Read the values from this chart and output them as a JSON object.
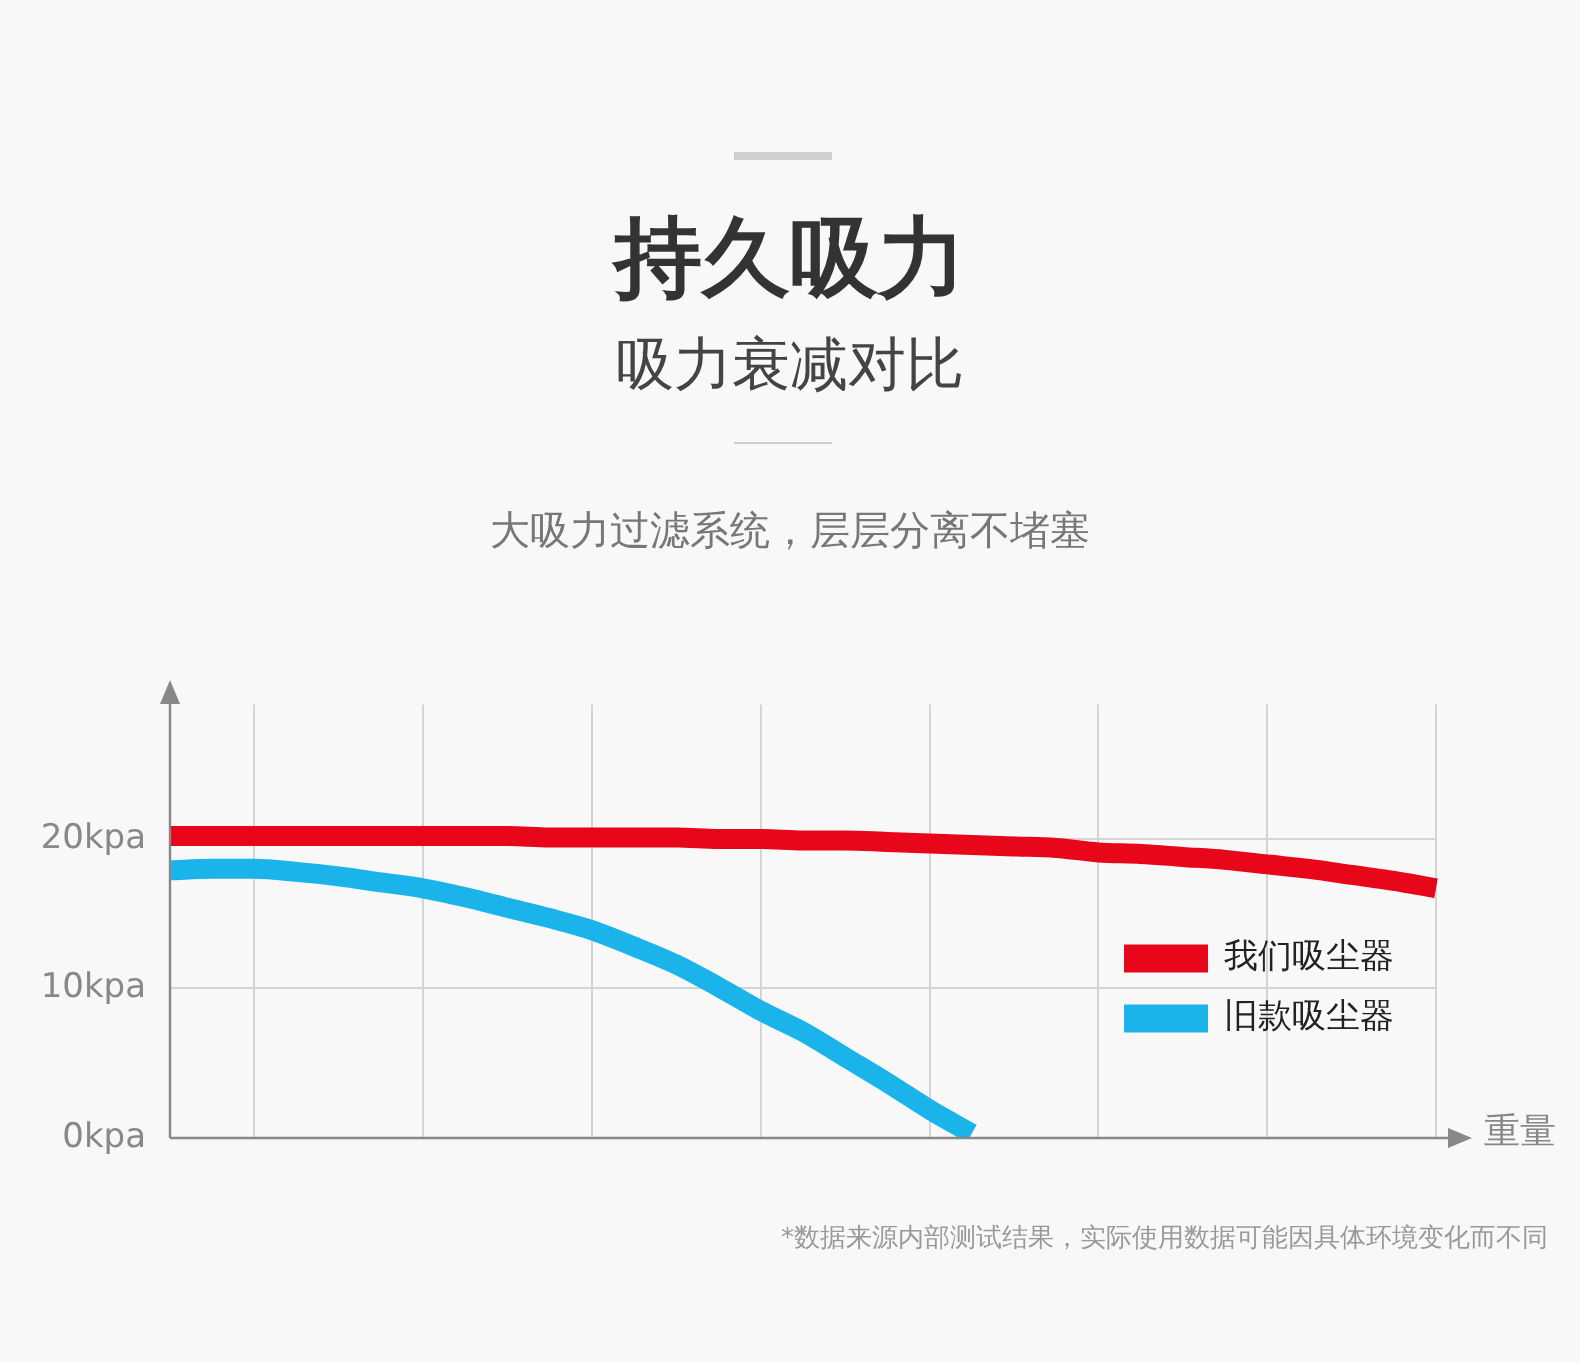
{
  "chart_data": {
    "type": "line",
    "title": "持久吸力",
    "subtitle": "吸力衰减对比",
    "annotations": [
      "大吸力过滤系统，层层分离不堵塞",
      "*数据来源内部测试结果，实际使用数据可能因具体环境变化而不同"
    ],
    "xlabel": "重量",
    "categories": [
      null,
      null,
      null,
      null,
      null,
      null,
      null,
      null,
      null,
      null,
      null,
      null,
      null,
      null,
      null,
      null,
      null,
      null,
      null,
      null,
      null,
      null,
      null,
      null,
      null,
      null,
      null,
      null,
      null,
      null,
      null
    ],
    "series": [
      {
        "name": "我们吸尘器",
        "color": "#e8061a",
        "values": [
          20.2,
          20.2,
          20.2,
          20.2,
          20.2,
          20.2,
          20.2,
          20.2,
          20.2,
          20.1,
          20.1,
          20.1,
          20.1,
          20.0,
          20.0,
          19.9,
          19.9,
          19.8,
          19.7,
          19.6,
          19.5,
          19.4,
          19.1,
          19.0,
          18.8,
          18.6,
          18.3,
          18.0,
          17.6,
          17.2,
          16.7
        ]
      },
      {
        "name": "旧款吸尘器",
        "color": "#1ab4ea",
        "values": [
          17.9,
          18.0,
          18.0,
          17.8,
          17.5,
          17.1,
          16.7,
          16.1,
          15.4,
          14.7,
          13.9,
          12.8,
          11.6,
          10.1,
          8.5,
          7.1,
          5.4,
          3.7,
          1.9,
          0.3,
          null,
          null,
          null,
          null,
          null,
          null,
          null,
          null,
          null,
          null,
          null
        ]
      }
    ],
    "ylim": [
      0,
      29
    ],
    "yticks": [
      {
        "value": 0,
        "label": "0kpa"
      },
      {
        "value": 10,
        "label": "10kpa"
      },
      {
        "value": 20,
        "label": "20kpa"
      }
    ],
    "grid": true,
    "legend": "right",
    "marker": "none",
    "line_style": "solid"
  }
}
